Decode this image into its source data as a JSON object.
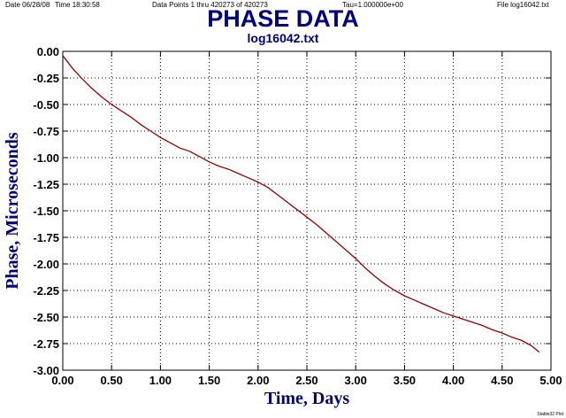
{
  "header": {
    "date": "Date  06/28/08",
    "time": "Time  18:30:58",
    "data_points": "Data Points 1 thru 420273 of 420273",
    "tau": "Tau=1.000000e+00",
    "file": "File  log16042.txt"
  },
  "credit": "Stable32 Plot",
  "colors": {
    "title": "#000080",
    "trace": "#990000",
    "axis": "#000000",
    "grid": "#000000"
  },
  "chart_data": {
    "type": "line",
    "title": "PHASE DATA",
    "subtitle": "log16042.txt",
    "xlabel": "Time, Days",
    "ylabel": "Phase, Microseconds",
    "xlim": [
      0,
      5
    ],
    "ylim": [
      -3,
      0
    ],
    "xticks": [
      0,
      0.5,
      1,
      1.5,
      2,
      2.5,
      3,
      3.5,
      4,
      4.5,
      5
    ],
    "xtick_labels": [
      "0.00",
      "0.50",
      "1.00",
      "1.50",
      "2.00",
      "2.50",
      "3.00",
      "3.50",
      "4.00",
      "4.50",
      "5.00"
    ],
    "yticks": [
      0,
      -0.25,
      -0.5,
      -0.75,
      -1,
      -1.25,
      -1.5,
      -1.75,
      -2,
      -2.25,
      -2.5,
      -2.75,
      -3
    ],
    "ytick_labels": [
      "0.00",
      "-0.25",
      "-0.50",
      "-0.75",
      "-1.00",
      "-1.25",
      "-1.50",
      "-1.75",
      "-2.00",
      "-2.25",
      "-2.50",
      "-2.75",
      "-3.00"
    ],
    "grid": true,
    "series": [
      {
        "x": [
          0,
          0.1,
          0.2,
          0.3,
          0.4,
          0.5,
          0.6,
          0.7,
          0.8,
          0.9,
          1.0,
          1.1,
          1.2,
          1.3,
          1.4,
          1.5,
          1.6,
          1.7,
          1.8,
          1.9,
          2.0,
          2.1,
          2.2,
          2.3,
          2.4,
          2.5,
          2.6,
          2.7,
          2.8,
          2.9,
          3.0,
          3.1,
          3.2,
          3.3,
          3.4,
          3.5,
          3.6,
          3.7,
          3.8,
          3.9,
          4.0,
          4.1,
          4.2,
          4.3,
          4.4,
          4.5,
          4.6,
          4.7,
          4.8,
          4.88
        ],
        "y": [
          -0.04,
          -0.16,
          -0.26,
          -0.35,
          -0.43,
          -0.5,
          -0.56,
          -0.62,
          -0.69,
          -0.75,
          -0.81,
          -0.86,
          -0.91,
          -0.94,
          -0.99,
          -1.04,
          -1.08,
          -1.11,
          -1.15,
          -1.19,
          -1.23,
          -1.28,
          -1.35,
          -1.42,
          -1.49,
          -1.56,
          -1.63,
          -1.71,
          -1.79,
          -1.87,
          -1.95,
          -2.04,
          -2.12,
          -2.19,
          -2.25,
          -2.3,
          -2.34,
          -2.38,
          -2.42,
          -2.46,
          -2.49,
          -2.52,
          -2.55,
          -2.58,
          -2.62,
          -2.65,
          -2.69,
          -2.72,
          -2.77,
          -2.83
        ]
      }
    ]
  }
}
